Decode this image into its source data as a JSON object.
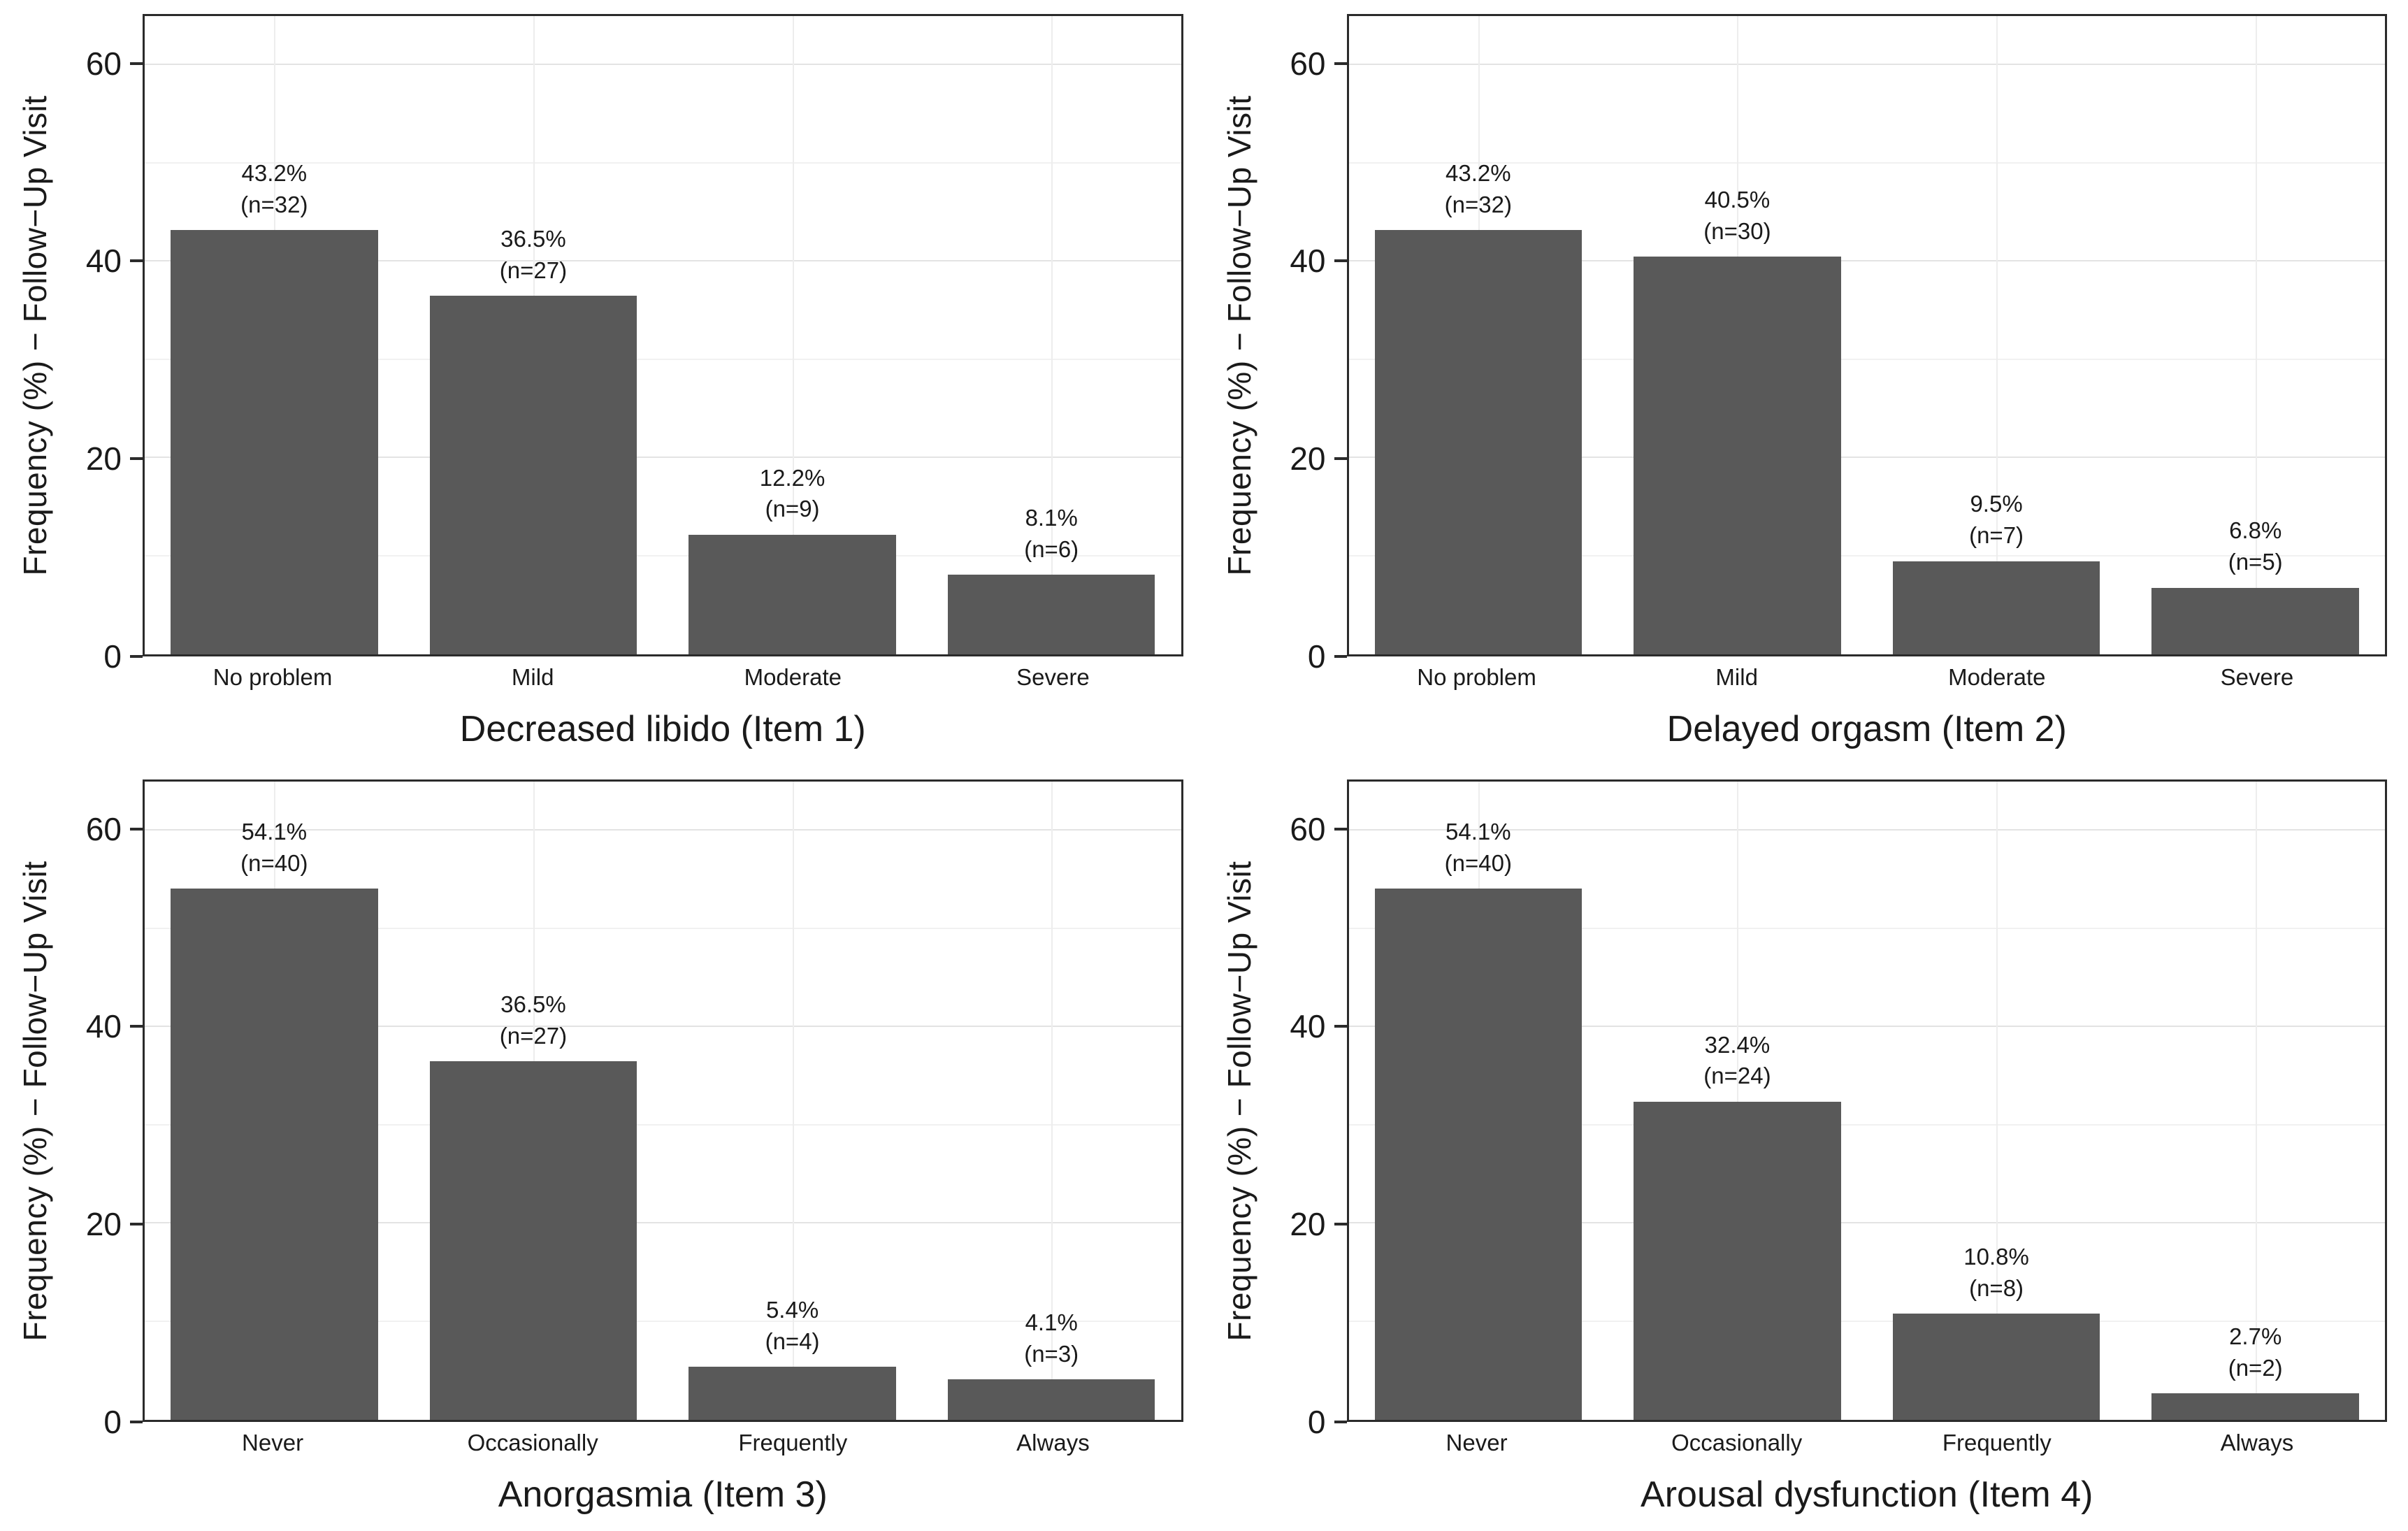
{
  "figure": {
    "y_axis_label": "Frequency (%) − Follow−Up Visit",
    "y_ticks": [
      0,
      20,
      40,
      60
    ],
    "y_minor_ticks": [
      10,
      30,
      50
    ],
    "y_max": 65,
    "bar_color": "#595959",
    "panel_border_color": "#2b2b2b"
  },
  "chart_data": [
    {
      "type": "bar",
      "title": "Decreased libido (Item 1)",
      "categories": [
        "No problem",
        "Mild",
        "Moderate",
        "Severe"
      ],
      "values": [
        43.2,
        36.5,
        12.2,
        8.1
      ],
      "counts": [
        32,
        27,
        9,
        6
      ],
      "ylabel": "Frequency (%) − Follow−Up Visit",
      "ylim": [
        0,
        65
      ],
      "y_ticks": [
        0,
        20,
        40,
        60
      ],
      "grid": true,
      "legend": "none"
    },
    {
      "type": "bar",
      "title": "Delayed orgasm (Item 2)",
      "categories": [
        "No problem",
        "Mild",
        "Moderate",
        "Severe"
      ],
      "values": [
        43.2,
        40.5,
        9.5,
        6.8
      ],
      "counts": [
        32,
        30,
        7,
        5
      ],
      "ylabel": "Frequency (%) − Follow−Up Visit",
      "ylim": [
        0,
        65
      ],
      "y_ticks": [
        0,
        20,
        40,
        60
      ],
      "grid": true,
      "legend": "none"
    },
    {
      "type": "bar",
      "title": "Anorgasmia (Item 3)",
      "categories": [
        "Never",
        "Occasionally",
        "Frequently",
        "Always"
      ],
      "values": [
        54.1,
        36.5,
        5.4,
        4.1
      ],
      "counts": [
        40,
        27,
        4,
        3
      ],
      "ylabel": "Frequency (%) − Follow−Up Visit",
      "ylim": [
        0,
        65
      ],
      "y_ticks": [
        0,
        20,
        40,
        60
      ],
      "grid": true,
      "legend": "none"
    },
    {
      "type": "bar",
      "title": "Arousal dysfunction (Item 4)",
      "categories": [
        "Never",
        "Occasionally",
        "Frequently",
        "Always"
      ],
      "values": [
        54.1,
        32.4,
        10.8,
        2.7
      ],
      "counts": [
        40,
        24,
        8,
        2
      ],
      "ylabel": "Frequency (%) − Follow−Up Visit",
      "ylim": [
        0,
        65
      ],
      "y_ticks": [
        0,
        20,
        40,
        60
      ],
      "grid": true,
      "legend": "none"
    }
  ]
}
